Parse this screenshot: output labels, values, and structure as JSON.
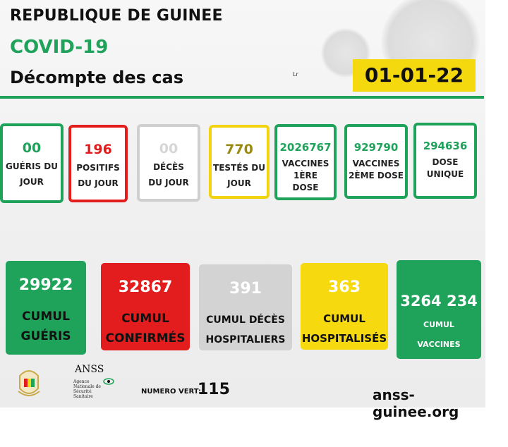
{
  "header": {
    "country": "REPUBLIQUE DE GUINEE",
    "covid": "COVID-19",
    "subtitle": "Décompte des cas",
    "mark": "Lr",
    "date": "01-01-22"
  },
  "daily": [
    {
      "value": "00",
      "label": [
        "GUÉRIS DU",
        "JOUR"
      ],
      "color": "#1fa25a",
      "num_color": "#1fa25a"
    },
    {
      "value": "196",
      "label": [
        "POSITIFS",
        "DU JOUR"
      ],
      "color": "#e31d1d",
      "num_color": "#e31d1d"
    },
    {
      "value": "00",
      "label": [
        "DÉCÈS",
        "DU JOUR"
      ],
      "color": "#cfcfcf",
      "num_color": "#d6d6d6"
    },
    {
      "value": "770",
      "label": [
        "TESTÉS DU",
        "JOUR"
      ],
      "color": "#f2d30f",
      "num_color": "#9a8b10"
    },
    {
      "value": "2026767",
      "label": [
        "VACCINES",
        "1ÈRE",
        "DOSE"
      ],
      "color": "#1fa25a",
      "num_color": "#1fa25a"
    },
    {
      "value": "929790",
      "label": [
        "VACCINES",
        "2ÈME DOSE"
      ],
      "color": "#1fa25a",
      "num_color": "#1fa25a"
    },
    {
      "value": "294636",
      "label": [
        "DOSE",
        "UNIQUE"
      ],
      "color": "#1fa25a",
      "num_color": "#1fa25a"
    }
  ],
  "cumul": [
    {
      "value": "29922",
      "label": [
        "CUMUL",
        "GUÉRIS"
      ],
      "bg": "#1fa25a",
      "num_color": "#ffffff",
      "lbl_color": "#111111"
    },
    {
      "value": "32867",
      "label": [
        "CUMUL",
        "CONFIRMÉS"
      ],
      "bg": "#e31d1d",
      "num_color": "#ffffff",
      "lbl_color": "#111111"
    },
    {
      "value": "391",
      "label": [
        "CUMUL DÉCÈS",
        "HOSPITALIERS"
      ],
      "bg": "#d3d3d3",
      "num_color": "#ffffff",
      "lbl_color": "#111111"
    },
    {
      "value": "363",
      "label": [
        "CUMUL",
        "HOSPITALISÉS"
      ],
      "bg": "#f7d90f",
      "num_color": "#ffffff",
      "lbl_color": "#111111"
    },
    {
      "value": "3264 234",
      "label": [
        "CUMUL",
        "VACCINES"
      ],
      "bg": "#1fa25a",
      "num_color": "#ffffff",
      "lbl_color": "#ffffff"
    }
  ],
  "footer": {
    "anss_title": "ANSS",
    "anss_lines": [
      "Agence",
      "Nationale de",
      "Sécurité",
      "Sanitaire"
    ],
    "numero_vert_label": "NUMERO VERT:",
    "numero_vert": "115",
    "website": "anss-guinee.org"
  }
}
